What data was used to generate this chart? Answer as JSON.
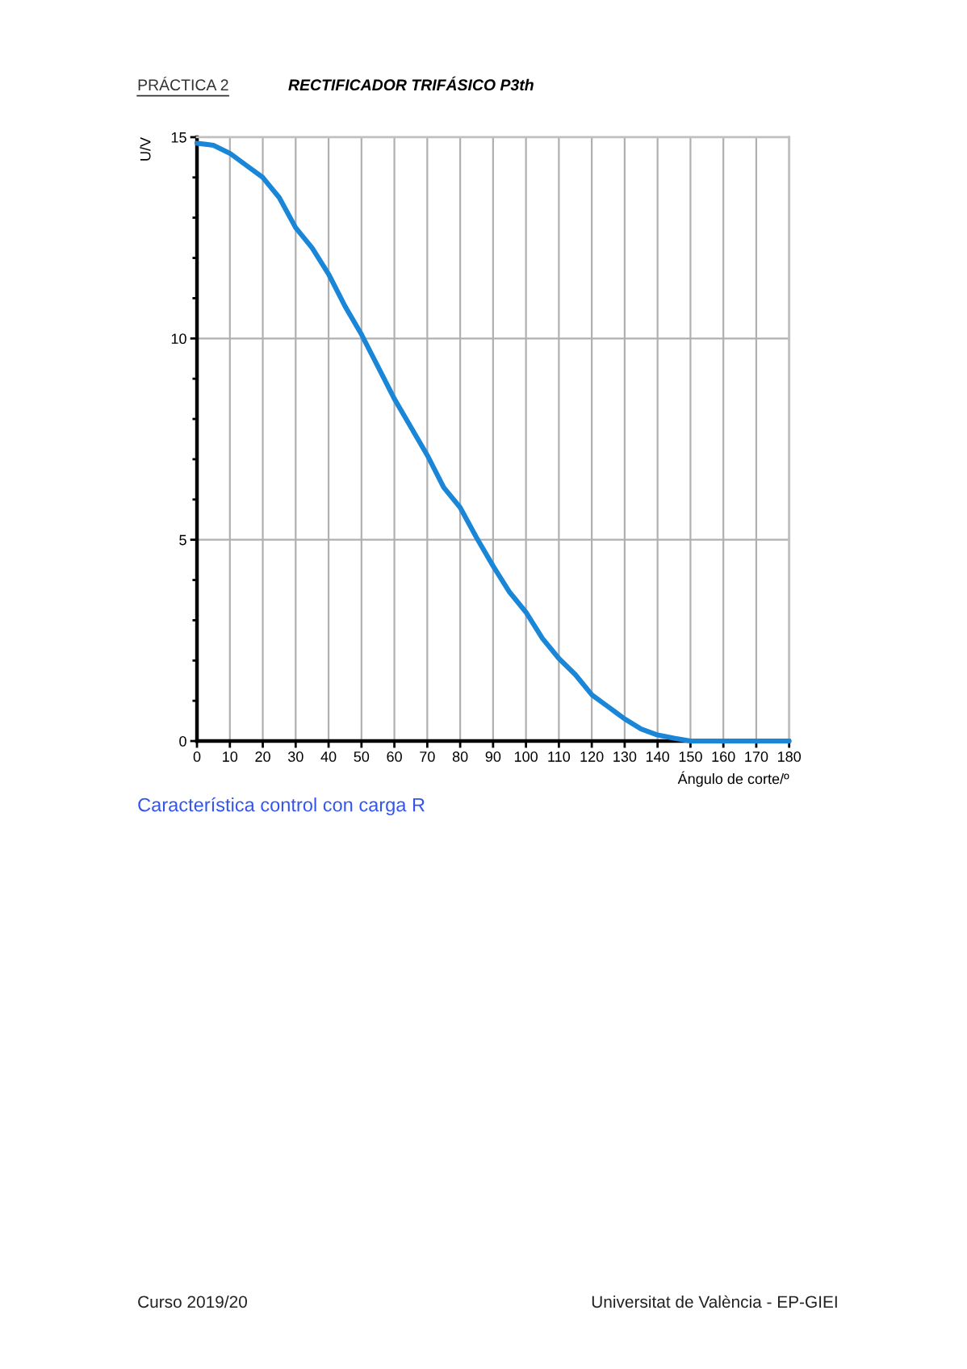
{
  "chart_data": {
    "type": "line",
    "title": "RECTIFICADOR TRIFÁSICO P3th",
    "xlabel": "Ángulo de corte/º",
    "ylabel": "U/V",
    "annotations": [
      "PRÁCTICA 2",
      "Característica control con carga R",
      "Curso 2019/20",
      "Universitat de València - EP-GIEI"
    ],
    "series": [
      {
        "color": "#1a86d8",
        "x": [
          0,
          5,
          10,
          15,
          20,
          25,
          30,
          35,
          40,
          45,
          50,
          55,
          60,
          65,
          70,
          75,
          80,
          85,
          90,
          95,
          100,
          105,
          110,
          115,
          120,
          125,
          130,
          135,
          140,
          145,
          150,
          160,
          170,
          180
        ],
        "values": [
          14.85,
          14.8,
          14.6,
          14.3,
          14.0,
          13.5,
          12.75,
          12.25,
          11.6,
          10.8,
          10.1,
          9.3,
          8.5,
          7.8,
          7.1,
          6.3,
          5.8,
          5.05,
          4.35,
          3.7,
          3.2,
          2.55,
          2.05,
          1.65,
          1.15,
          0.85,
          0.55,
          0.3,
          0.15,
          0.07,
          0,
          0,
          0,
          0
        ]
      }
    ],
    "xlim": [
      0,
      180
    ],
    "ylim": [
      0,
      15
    ],
    "xticks": [
      0,
      10,
      20,
      30,
      40,
      50,
      60,
      70,
      80,
      90,
      100,
      110,
      120,
      130,
      140,
      150,
      160,
      170,
      180
    ],
    "yticks": [
      0,
      {
        "value": 1,
        "label": null
      },
      {
        "value": 2,
        "label": null
      },
      {
        "value": 3,
        "label": null
      },
      {
        "value": 4,
        "label": null
      },
      5,
      {
        "value": 6,
        "label": null
      },
      {
        "value": 7,
        "label": null
      },
      {
        "value": 8,
        "label": null
      },
      {
        "value": 9,
        "label": null
      },
      10,
      {
        "value": 11,
        "label": null
      },
      {
        "value": 12,
        "label": null
      },
      {
        "value": 13,
        "label": null
      },
      {
        "value": 14,
        "label": null
      },
      15
    ],
    "grid": true,
    "legend": false,
    "marker": "none",
    "line_style": "solid"
  }
}
